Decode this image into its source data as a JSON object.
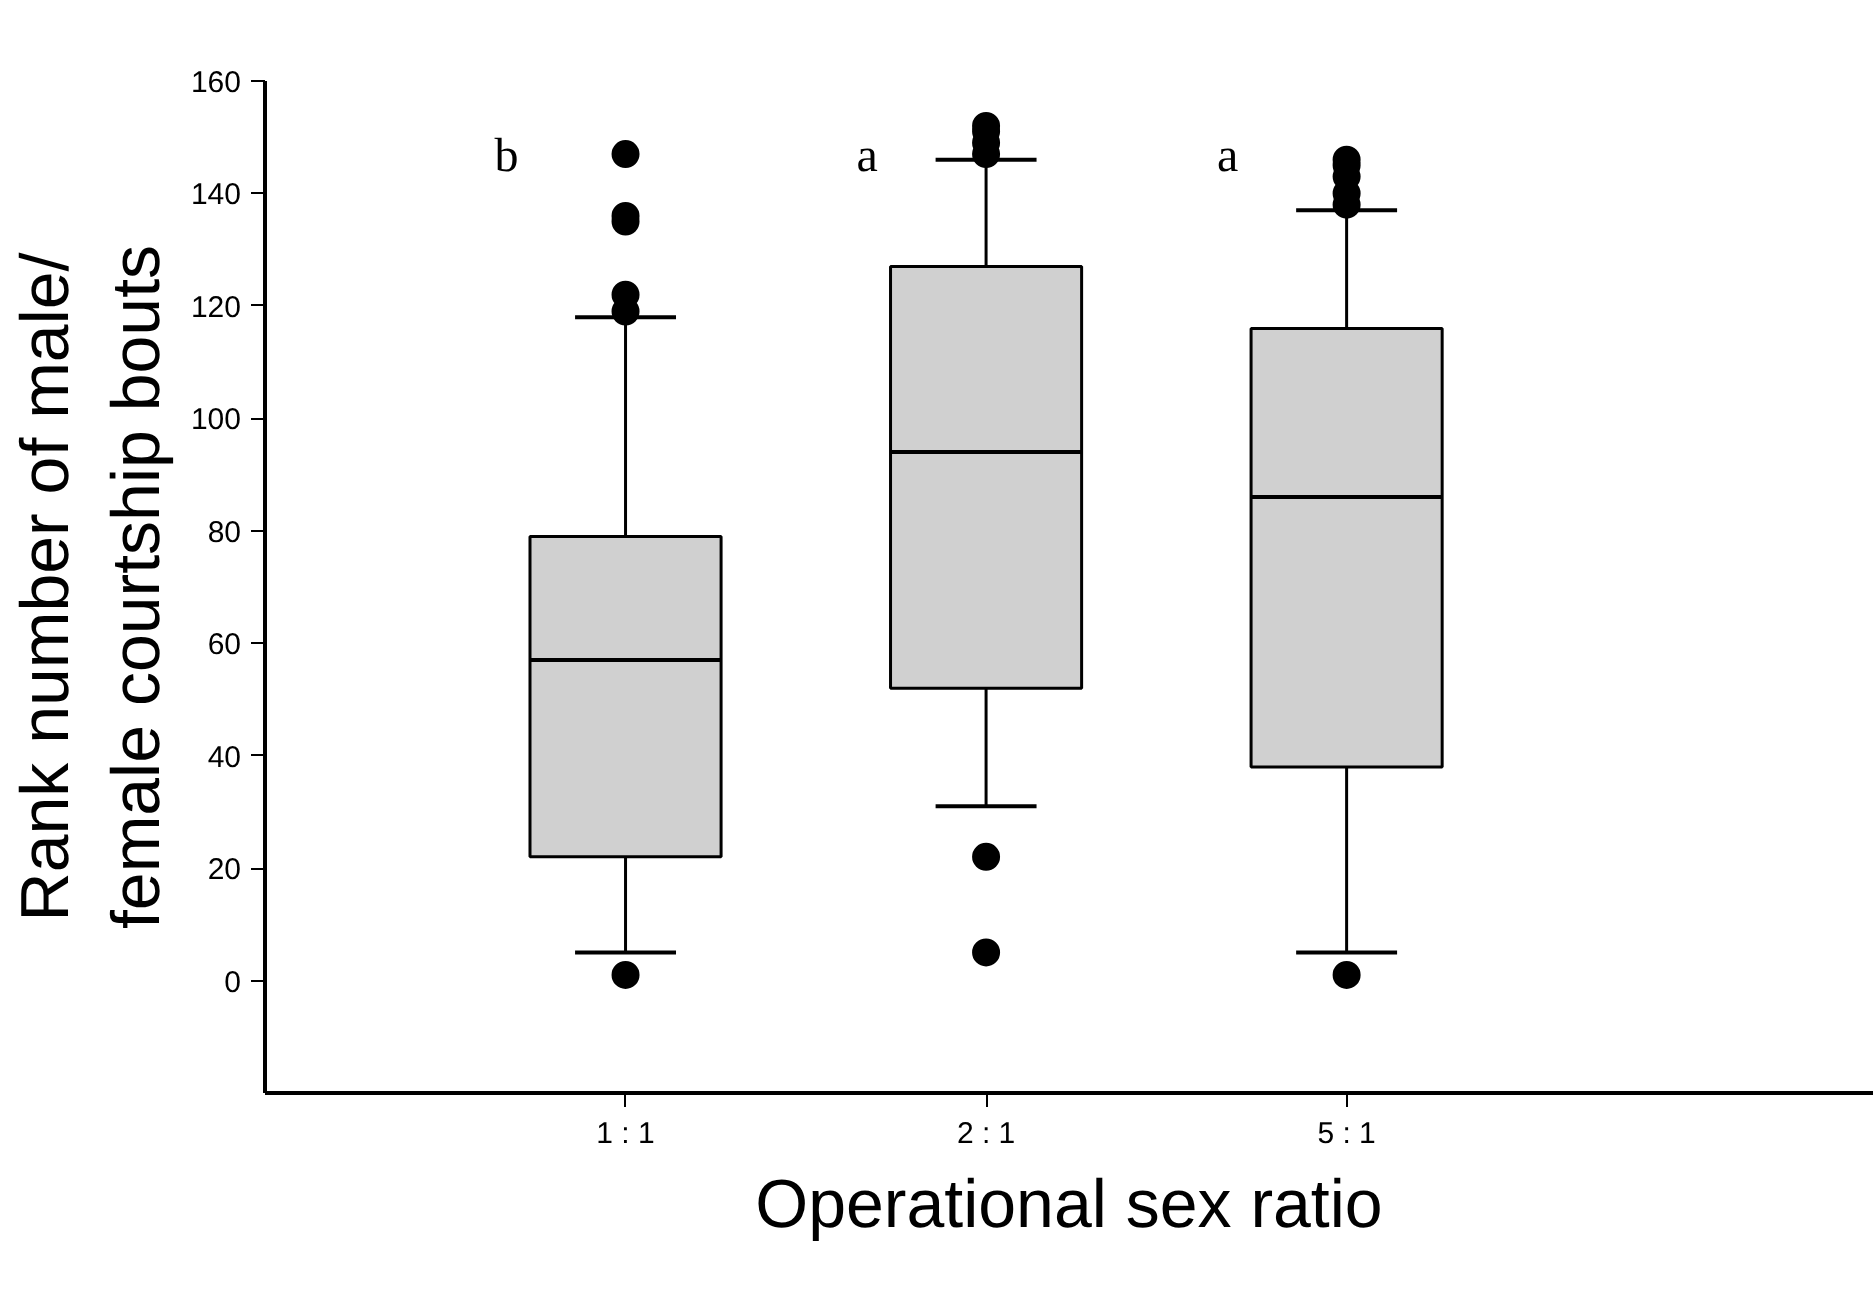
{
  "chart_data": {
    "type": "box",
    "xlabel": "Operational sex ratio",
    "ylabel": "Rank number of male/\nfemale courtship bouts",
    "categories": [
      "1 : 1",
      "2 : 1",
      "5 : 1"
    ],
    "boxes": [
      {
        "low": 5,
        "q1": 22,
        "median": 57,
        "q3": 79,
        "high": 118,
        "outliers": [
          1,
          119,
          122,
          135,
          136,
          147
        ]
      },
      {
        "low": 31,
        "q1": 52,
        "median": 94,
        "q3": 127,
        "high": 146,
        "outliers": [
          5,
          22,
          147,
          149,
          151,
          152
        ]
      },
      {
        "low": 5,
        "q1": 38,
        "median": 86,
        "q3": 116,
        "high": 137,
        "outliers": [
          1,
          138,
          140,
          143,
          145,
          146
        ]
      }
    ],
    "color": "#d0d0d0",
    "ylim": [
      -20,
      160
    ],
    "yticks": [
      0,
      20,
      40,
      60,
      80,
      100,
      120,
      140,
      160
    ],
    "annotations": [
      "b",
      "a",
      "a"
    ],
    "grid": false
  }
}
